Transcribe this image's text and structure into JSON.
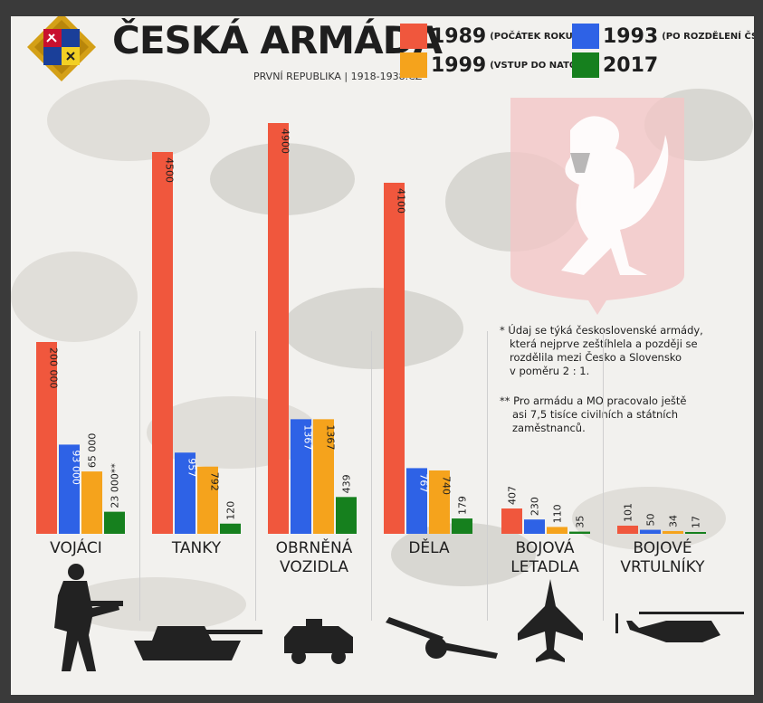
{
  "title": "ČESKÁ ARMÁDA",
  "subtitle": "PRVNÍ REPUBLIKA | 1918-1938.CZ",
  "legend": [
    {
      "year": "1989",
      "note": "(POČÁTEK ROKU)*",
      "color": "#f0573d"
    },
    {
      "year": "1993",
      "note": "(PO ROZDĚLENÍ ČSR)",
      "color": "#2e62e6"
    },
    {
      "year": "1999",
      "note": "(VSTUP DO NATO)",
      "color": "#f5a31c"
    },
    {
      "year": "2017",
      "note": "",
      "color": "#16801e"
    }
  ],
  "notes": {
    "n1": [
      "* Údaj se týká československé armády,",
      "která nejprve zeštíhlela a později se",
      "rozdělila mezi Česko a Slovensko",
      "v poměru 2 : 1."
    ],
    "n2": [
      "** Pro armádu a MO pracovalo ještě",
      "asi 7,5 tisíce civilních a státních",
      "zaměstnanců."
    ]
  },
  "chart_data": {
    "type": "bar",
    "series": [
      {
        "name": "1989",
        "values": [
          200000,
          4500,
          4900,
          4100,
          407,
          101
        ]
      },
      {
        "name": "1993",
        "values": [
          93000,
          957,
          1367,
          767,
          230,
          50
        ]
      },
      {
        "name": "1999",
        "values": [
          65000,
          792,
          1367,
          740,
          110,
          34
        ]
      },
      {
        "name": "2017",
        "values": [
          23000,
          120,
          439,
          179,
          35,
          17
        ]
      }
    ],
    "categories": [
      "VOJÁCI",
      "TANKY",
      "OBRNĚNÁ VOZIDLA",
      "DĚLA",
      "BOJOVÁ LETADLA",
      "BOJOVÉ VRTULNÍKY"
    ],
    "labels": [
      [
        "200 000",
        "93 000",
        "65 000",
        "23 000**"
      ],
      [
        "4500",
        "957",
        "792",
        "120"
      ],
      [
        "4900",
        "1367",
        "1367",
        "439"
      ],
      [
        "4100",
        "767",
        "740",
        "179"
      ],
      [
        "407",
        "230",
        "110",
        "35"
      ],
      [
        "101",
        "50",
        "34",
        "17"
      ]
    ],
    "colors": [
      "#f0573d",
      "#2e62e6",
      "#f5a31c",
      "#16801e"
    ]
  }
}
